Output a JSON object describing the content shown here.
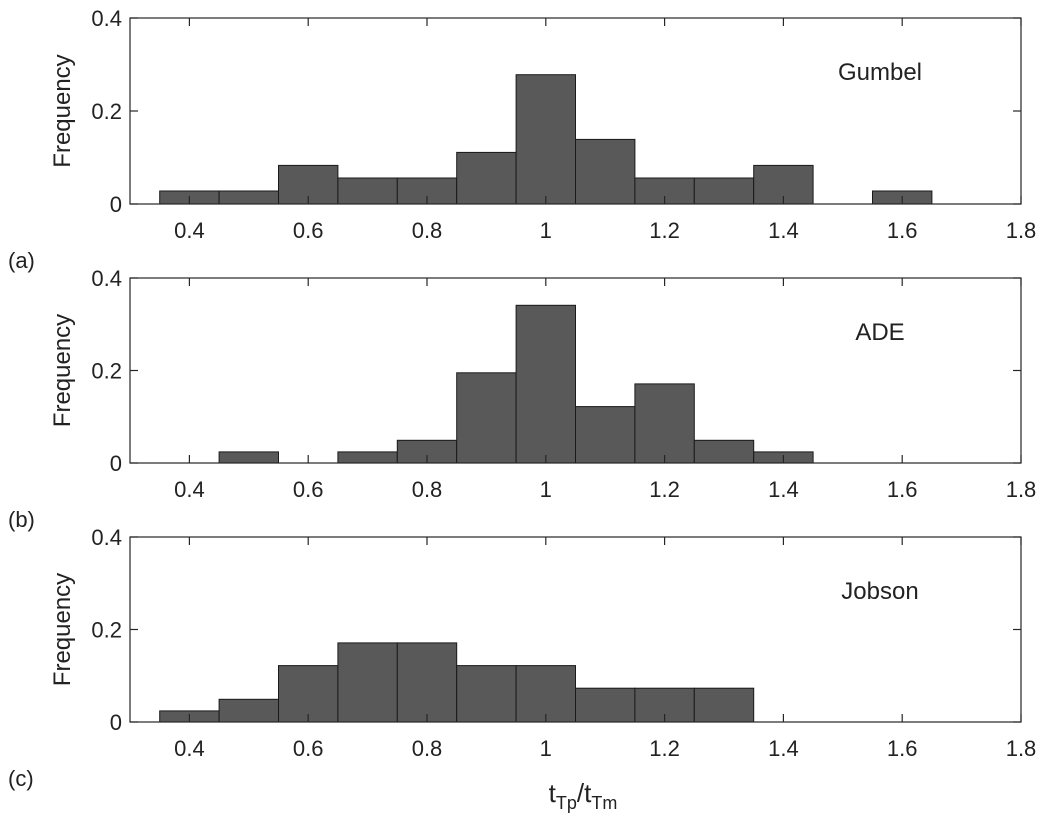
{
  "figure": {
    "xlabel_main": "t",
    "xlabel_sub1": "Tp",
    "xlabel_sep": "/t",
    "xlabel_sub2": "Tm"
  },
  "chart_data": [
    {
      "type": "bar",
      "panel_label": "(a)",
      "annotation": "Gumbel",
      "ylabel": "Frequency",
      "xlabel": "",
      "xlim": [
        0.3,
        1.8
      ],
      "ylim": [
        0,
        0.4
      ],
      "xticks": [
        "0.4",
        "0.6",
        "0.8",
        "1",
        "1.2",
        "1.4",
        "1.6",
        "1.8"
      ],
      "yticks": [
        "0",
        "0.2",
        "0.4"
      ],
      "bin_width": 0.1,
      "bins": [
        {
          "center": 0.4,
          "value": 0.028
        },
        {
          "center": 0.5,
          "value": 0.028
        },
        {
          "center": 0.6,
          "value": 0.083
        },
        {
          "center": 0.7,
          "value": 0.056
        },
        {
          "center": 0.8,
          "value": 0.056
        },
        {
          "center": 0.9,
          "value": 0.111
        },
        {
          "center": 1.0,
          "value": 0.278
        },
        {
          "center": 1.1,
          "value": 0.139
        },
        {
          "center": 1.2,
          "value": 0.056
        },
        {
          "center": 1.3,
          "value": 0.056
        },
        {
          "center": 1.4,
          "value": 0.083
        },
        {
          "center": 1.6,
          "value": 0.028
        }
      ]
    },
    {
      "type": "bar",
      "panel_label": "(b)",
      "annotation": "ADE",
      "ylabel": "Frequency",
      "xlabel": "",
      "xlim": [
        0.3,
        1.8
      ],
      "ylim": [
        0,
        0.4
      ],
      "xticks": [
        "0.4",
        "0.6",
        "0.8",
        "1",
        "1.2",
        "1.4",
        "1.6",
        "1.8"
      ],
      "yticks": [
        "0",
        "0.2",
        "0.4"
      ],
      "bin_width": 0.1,
      "bins": [
        {
          "center": 0.5,
          "value": 0.024
        },
        {
          "center": 0.7,
          "value": 0.024
        },
        {
          "center": 0.8,
          "value": 0.049
        },
        {
          "center": 0.9,
          "value": 0.195
        },
        {
          "center": 1.0,
          "value": 0.341
        },
        {
          "center": 1.1,
          "value": 0.122
        },
        {
          "center": 1.2,
          "value": 0.171
        },
        {
          "center": 1.3,
          "value": 0.049
        },
        {
          "center": 1.4,
          "value": 0.024
        }
      ]
    },
    {
      "type": "bar",
      "panel_label": "(c)",
      "annotation": "Jobson",
      "ylabel": "Frequency",
      "xlabel": "tTp/tTm",
      "xlim": [
        0.3,
        1.8
      ],
      "ylim": [
        0,
        0.4
      ],
      "xticks": [
        "0.4",
        "0.6",
        "0.8",
        "1",
        "1.2",
        "1.4",
        "1.6",
        "1.8"
      ],
      "yticks": [
        "0",
        "0.2",
        "0.4"
      ],
      "bin_width": 0.1,
      "bins": [
        {
          "center": 0.4,
          "value": 0.024
        },
        {
          "center": 0.5,
          "value": 0.049
        },
        {
          "center": 0.6,
          "value": 0.122
        },
        {
          "center": 0.7,
          "value": 0.171
        },
        {
          "center": 0.8,
          "value": 0.171
        },
        {
          "center": 0.9,
          "value": 0.122
        },
        {
          "center": 1.0,
          "value": 0.122
        },
        {
          "center": 1.1,
          "value": 0.073
        },
        {
          "center": 1.2,
          "value": 0.073
        },
        {
          "center": 1.3,
          "value": 0.073
        }
      ]
    }
  ],
  "colors": {
    "bar_fill": "#595959",
    "bar_edge": "#1a1a1a",
    "axis": "#262626",
    "text": "#222222"
  }
}
